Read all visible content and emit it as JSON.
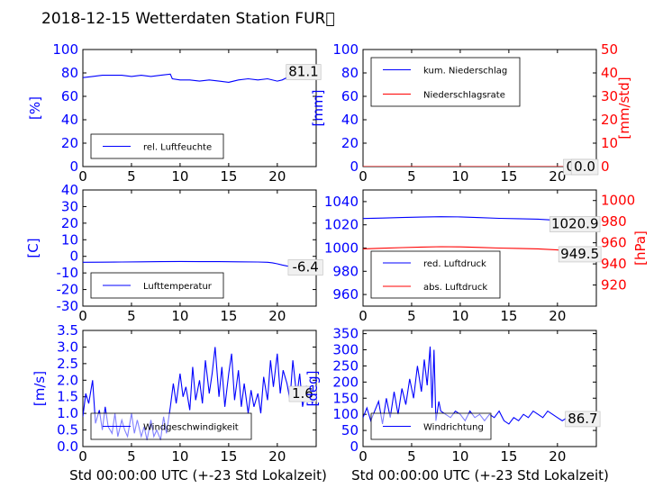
{
  "title": "2018-12-15 Wetterdaten Station FUR\u0000",
  "colors": {
    "blue": "#0000ff",
    "red": "#ff0000",
    "black": "#000000"
  },
  "xlabel": "Std 00:00:00 UTC (+-23 Std Lokalzeit)",
  "chart_data": [
    {
      "type": "line",
      "id": "humidity",
      "ylabel": "[%]",
      "ylim": [
        0,
        100
      ],
      "yticks": [
        0,
        20,
        40,
        60,
        80,
        100
      ],
      "xlim": [
        0,
        24
      ],
      "xticks": [
        0,
        5,
        10,
        15,
        20
      ],
      "legend_position": "lower-left",
      "series": [
        {
          "name": "rel. Luftfeuchte",
          "color": "#0000ff",
          "x": [
            0,
            1,
            2,
            3,
            4,
            5,
            6,
            7,
            8,
            9,
            9.2,
            10,
            11,
            12,
            13,
            14,
            15,
            16,
            17,
            18,
            19,
            20,
            20.5,
            21,
            22,
            23,
            24
          ],
          "y": [
            76,
            77,
            78,
            78,
            78,
            77,
            78,
            77,
            78,
            79,
            75,
            74,
            74,
            73,
            74,
            73,
            72,
            74,
            75,
            74,
            75,
            73,
            74,
            76,
            78,
            81,
            81
          ]
        }
      ],
      "annotations": [
        {
          "text": "81.1",
          "x": 22.7,
          "y": 81.1
        }
      ]
    },
    {
      "type": "line",
      "id": "precip",
      "ylabel": "[mm]",
      "ylabel_right": "[mm/std]",
      "ylim": [
        0,
        100
      ],
      "yticks": [
        0,
        20,
        40,
        60,
        80,
        100
      ],
      "ylim_right": [
        0,
        50
      ],
      "yticks_right": [
        0,
        10,
        20,
        30,
        40,
        50
      ],
      "xlim": [
        0,
        24
      ],
      "xticks": [
        0,
        5,
        10,
        15,
        20
      ],
      "legend_position": "upper-left",
      "series": [
        {
          "name": "kum. Niederschlag",
          "color": "#0000ff",
          "axis": "left",
          "x": [
            0,
            24
          ],
          "y": [
            0,
            0
          ]
        },
        {
          "name": "Niederschlagsrate",
          "color": "#ff0000",
          "axis": "right",
          "x": [
            0,
            24
          ],
          "y": [
            0,
            0
          ]
        }
      ],
      "annotations": [
        {
          "text": "0.0",
          "x": 22.0,
          "y": 0
        },
        {
          "text": "0.0",
          "x": 22.8,
          "y": 0
        }
      ]
    },
    {
      "type": "line",
      "id": "temperature",
      "ylabel": "[C]",
      "ylim": [
        -30,
        40
      ],
      "yticks": [
        -30,
        -20,
        -10,
        0,
        10,
        20,
        30,
        40
      ],
      "xlim": [
        0,
        24
      ],
      "xticks": [
        0,
        5,
        10,
        15,
        20
      ],
      "legend_position": "lower-left",
      "series": [
        {
          "name": "Lufttemperatur",
          "color": "#0000ff",
          "x": [
            0,
            2,
            4,
            6,
            8,
            10,
            12,
            14,
            16,
            18,
            19,
            19.5,
            20,
            20.5,
            21,
            22,
            23,
            24
          ],
          "y": [
            -3.6,
            -3.5,
            -3.4,
            -3.3,
            -3.2,
            -3.1,
            -3.2,
            -3.2,
            -3.3,
            -3.4,
            -3.6,
            -3.9,
            -4.5,
            -5.2,
            -5.8,
            -6.1,
            -6.3,
            -6.4
          ]
        }
      ],
      "annotations": [
        {
          "text": "-6.4",
          "x": 22.9,
          "y": -6.4
        }
      ]
    },
    {
      "type": "line",
      "id": "pressure",
      "ylabel_right": "[hPa]",
      "ylim": [
        950,
        1050
      ],
      "yticks": [
        960,
        980,
        1000,
        1020,
        1040
      ],
      "ylim_right": [
        900,
        1010
      ],
      "yticks_right": [
        920,
        940,
        960,
        980,
        1000
      ],
      "xlim": [
        0,
        24
      ],
      "xticks": [
        0,
        5,
        10,
        15,
        20
      ],
      "legend_position": "lower-left",
      "series": [
        {
          "name": "red. Luftdruck",
          "color": "#0000ff",
          "axis": "left",
          "x": [
            0,
            2,
            4,
            6,
            8,
            10,
            12,
            14,
            16,
            18,
            20,
            22,
            24
          ],
          "y": [
            1025.4,
            1025.8,
            1026.3,
            1026.7,
            1027.0,
            1026.8,
            1026.2,
            1025.6,
            1025.3,
            1024.9,
            1023.9,
            1022.0,
            1020.9
          ]
        },
        {
          "name": "abs. Luftdruck",
          "color": "#ff0000",
          "axis": "right",
          "x": [
            0,
            2,
            4,
            6,
            8,
            10,
            12,
            14,
            16,
            18,
            20,
            22,
            24
          ],
          "y": [
            954.2,
            954.8,
            955.4,
            955.9,
            956.3,
            956.1,
            955.6,
            955.0,
            954.7,
            954.2,
            953.2,
            951.2,
            949.5
          ]
        }
      ],
      "annotations": [
        {
          "text": "1020.9",
          "x": 21.8,
          "y": 1020.9
        },
        {
          "text": "949.5",
          "x": 22.3,
          "y": 949.5
        }
      ]
    },
    {
      "type": "line",
      "id": "wind_speed",
      "ylabel": "[m/s]",
      "ylim": [
        0,
        3.5
      ],
      "yticks": [
        0.0,
        0.5,
        1.0,
        1.5,
        2.0,
        2.5,
        3.0,
        3.5
      ],
      "xlim": [
        0,
        24
      ],
      "xticks": [
        0,
        5,
        10,
        15,
        20
      ],
      "legend_position": "lower-center",
      "series": [
        {
          "name": "Windgeschwindigkeit",
          "color": "#0000ff",
          "x": [
            0,
            0.3,
            0.6,
            1,
            1.3,
            1.7,
            2,
            2.3,
            2.6,
            3,
            3.3,
            3.6,
            4,
            4.3,
            4.6,
            5,
            5.3,
            5.6,
            6,
            6.3,
            6.6,
            7,
            7.3,
            7.6,
            8,
            8.3,
            8.6,
            9,
            9.3,
            9.6,
            10,
            10.3,
            10.6,
            11,
            11.3,
            11.6,
            12,
            12.3,
            12.6,
            13,
            13.3,
            13.6,
            14,
            14.3,
            14.6,
            15,
            15.3,
            15.6,
            16,
            16.3,
            16.6,
            17,
            17.3,
            17.6,
            18,
            18.3,
            18.6,
            19,
            19.3,
            19.6,
            20,
            20.3,
            20.6,
            21,
            21.3,
            21.6,
            22,
            22.3,
            22.6,
            23,
            23.3,
            23.6,
            24
          ],
          "y": [
            0.9,
            1.6,
            1.3,
            2.0,
            0.7,
            1.1,
            0.5,
            1.2,
            0.6,
            0.4,
            1.0,
            0.3,
            0.8,
            0.5,
            0.3,
            1.0,
            0.4,
            0.8,
            0.3,
            0.6,
            0.2,
            0.8,
            0.3,
            0.5,
            0.2,
            0.9,
            0.4,
            1.2,
            1.9,
            1.3,
            2.2,
            1.5,
            1.8,
            1.1,
            2.4,
            1.4,
            2.0,
            1.3,
            2.6,
            1.6,
            2.2,
            3.0,
            1.5,
            2.4,
            1.2,
            2.2,
            2.8,
            1.4,
            2.3,
            1.2,
            1.9,
            1.0,
            1.7,
            1.2,
            1.6,
            1.0,
            2.1,
            1.4,
            2.6,
            1.8,
            2.8,
            1.6,
            2.3,
            1.9,
            1.4,
            2.6,
            1.5,
            2.2,
            1.2,
            1.8,
            1.6,
            1.3,
            1.6
          ]
        }
      ],
      "annotations": [
        {
          "text": "1.6",
          "x": 22.6,
          "y": 1.6
        }
      ]
    },
    {
      "type": "line",
      "id": "wind_direction",
      "ylabel": "[deg]",
      "ylim": [
        0,
        360
      ],
      "yticks": [
        0,
        50,
        100,
        150,
        200,
        250,
        300,
        350
      ],
      "xlim": [
        0,
        24
      ],
      "xticks": [
        0,
        5,
        10,
        15,
        20
      ],
      "legend_position": "lower-left",
      "series": [
        {
          "name": "Windrichtung",
          "color": "#0000ff",
          "x": [
            0,
            0.4,
            0.8,
            1.2,
            1.6,
            2,
            2.4,
            2.8,
            3.2,
            3.6,
            4,
            4.4,
            4.8,
            5.2,
            5.6,
            6,
            6.3,
            6.6,
            6.9,
            7.1,
            7.3,
            7.5,
            7.8,
            8,
            8.5,
            9,
            9.5,
            10,
            10.5,
            11,
            11.5,
            12,
            12.5,
            13,
            13.5,
            14,
            14.5,
            15,
            15.5,
            16,
            16.5,
            17,
            17.5,
            18,
            18.5,
            19,
            19.5,
            20,
            20.5,
            21,
            21.5,
            22,
            22.5,
            23,
            23.5,
            24
          ],
          "y": [
            90,
            120,
            80,
            110,
            140,
            70,
            150,
            90,
            170,
            100,
            180,
            130,
            210,
            150,
            250,
            170,
            270,
            190,
            310,
            120,
            300,
            80,
            140,
            110,
            100,
            90,
            110,
            100,
            80,
            110,
            90,
            100,
            80,
            100,
            90,
            110,
            80,
            70,
            90,
            80,
            100,
            90,
            110,
            100,
            90,
            110,
            100,
            90,
            80,
            90,
            100,
            90,
            100,
            90,
            85,
            87
          ]
        }
      ],
      "annotations": [
        {
          "text": "86.7",
          "x": 22.6,
          "y": 86.7
        }
      ]
    }
  ]
}
